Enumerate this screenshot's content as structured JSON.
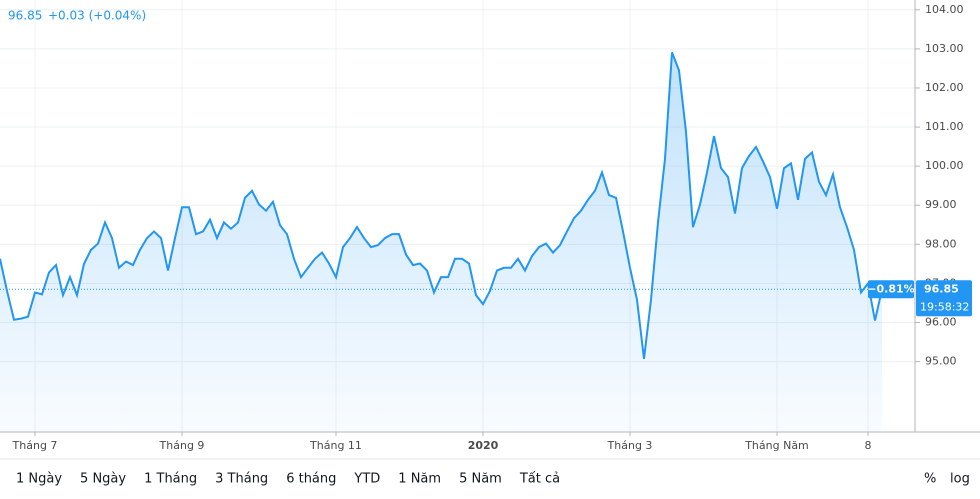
{
  "chart_data": {
    "type": "area",
    "header": {
      "price": "96.85",
      "change": "+0.03 (+0.04%)"
    },
    "color": "#2196f3",
    "grid": true,
    "log_scale": false,
    "ylim": [
      93.2,
      104.25
    ],
    "yticks": [
      {
        "value": 95,
        "label": "95.00"
      },
      {
        "value": 96,
        "label": "96.00"
      },
      {
        "value": 97,
        "label": "97.00"
      },
      {
        "value": 98,
        "label": "98.00"
      },
      {
        "value": 99,
        "label": "99.00"
      },
      {
        "value": 100,
        "label": "100.00"
      },
      {
        "value": 101,
        "label": "101.00"
      },
      {
        "value": 102,
        "label": "102.00"
      },
      {
        "value": 103,
        "label": "103.00"
      },
      {
        "value": 104,
        "label": "104.00"
      }
    ],
    "categories": [
      null,
      null,
      null,
      null,
      null,
      "Tháng 7",
      null,
      null,
      null,
      null,
      null,
      null,
      null,
      null,
      null,
      null,
      null,
      null,
      null,
      null,
      null,
      null,
      null,
      null,
      null,
      null,
      "Tháng 9",
      null,
      null,
      null,
      null,
      null,
      null,
      null,
      null,
      null,
      null,
      null,
      null,
      null,
      null,
      null,
      null,
      null,
      null,
      null,
      null,
      null,
      "Tháng 11",
      null,
      null,
      null,
      null,
      null,
      null,
      null,
      null,
      null,
      null,
      null,
      null,
      null,
      null,
      null,
      null,
      null,
      null,
      null,
      null,
      "2020",
      null,
      null,
      null,
      null,
      null,
      null,
      null,
      null,
      null,
      null,
      null,
      null,
      null,
      null,
      null,
      null,
      null,
      null,
      null,
      null,
      "Tháng 3",
      null,
      null,
      null,
      null,
      null,
      null,
      null,
      null,
      null,
      null,
      null,
      null,
      null,
      null,
      null,
      null,
      null,
      null,
      null,
      null,
      "Tháng Năm",
      null,
      null,
      null,
      null,
      null,
      null,
      null,
      null,
      null,
      null,
      null,
      null,
      "8",
      null,
      null
    ],
    "values": [
      97.63,
      96.81,
      96.07,
      96.1,
      96.15,
      96.77,
      96.72,
      97.28,
      97.47,
      96.7,
      97.16,
      96.7,
      97.5,
      97.86,
      98.02,
      98.56,
      98.16,
      97.4,
      97.56,
      97.47,
      97.86,
      98.16,
      98.33,
      98.16,
      97.33,
      98.16,
      98.95,
      98.95,
      98.26,
      98.33,
      98.63,
      98.16,
      98.56,
      98.4,
      98.56,
      99.19,
      99.37,
      99.02,
      98.86,
      99.09,
      98.49,
      98.26,
      97.63,
      97.16,
      97.4,
      97.63,
      97.79,
      97.51,
      97.16,
      97.93,
      98.16,
      98.44,
      98.16,
      97.93,
      97.98,
      98.16,
      98.26,
      98.26,
      97.74,
      97.47,
      97.51,
      97.33,
      96.77,
      97.16,
      97.16,
      97.63,
      97.63,
      97.51,
      96.7,
      96.47,
      96.81,
      97.33,
      97.4,
      97.4,
      97.63,
      97.33,
      97.7,
      97.93,
      98.02,
      97.79,
      97.98,
      98.33,
      98.67,
      98.86,
      99.14,
      99.37,
      99.84,
      99.26,
      99.19,
      98.33,
      97.4,
      96.58,
      95.07,
      96.58,
      98.56,
      100.19,
      102.91,
      102.45,
      100.88,
      98.44,
      99.02,
      99.84,
      100.77,
      99.95,
      99.72,
      98.79,
      99.95,
      100.26,
      100.49,
      100.12,
      99.72,
      98.91,
      99.95,
      100.07,
      99.14,
      100.19,
      100.35,
      99.6,
      99.26,
      99.79,
      98.95,
      98.44,
      97.86,
      96.77,
      97.0,
      96.05,
      96.85
    ],
    "price_line": {
      "value": 96.85,
      "label": "96.85"
    },
    "price_tag": {
      "change": "−0.81%",
      "time": "19:58:32"
    },
    "ranges": [
      "1 Ngày",
      "5 Ngày",
      "1 Tháng",
      "3 Tháng",
      "6 tháng",
      "YTD",
      "1 Năm",
      "5 Năm",
      "Tất cả"
    ],
    "toggles": [
      "%",
      "log"
    ]
  }
}
